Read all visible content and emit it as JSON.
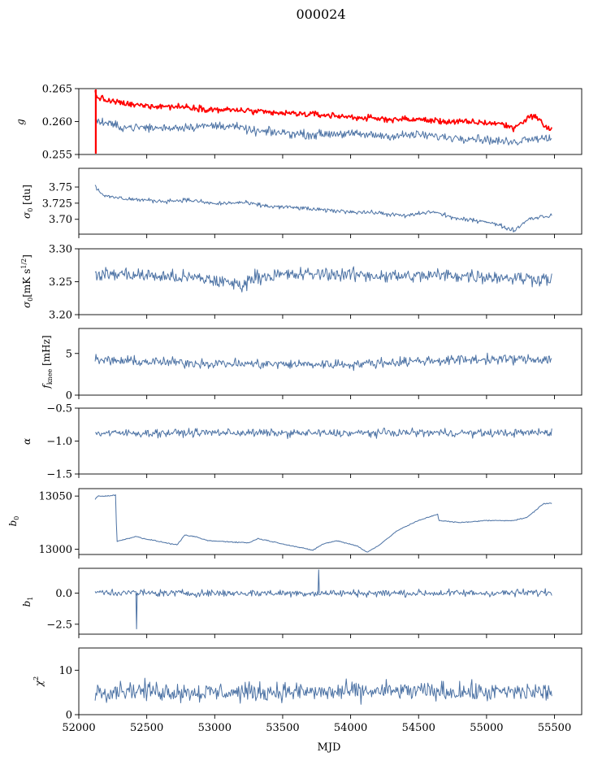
{
  "figure": {
    "title": "000024",
    "xlabel": "MJD",
    "colors": {
      "primary": "#4c72a4",
      "secondary": "#ff0000",
      "axes": "#000000"
    }
  },
  "chart_data": {
    "type": "line",
    "x_range": [
      52000,
      55700
    ],
    "x_ticks": [
      52000,
      52500,
      53000,
      53500,
      54000,
      54500,
      55000,
      55500
    ],
    "x_tick_labels": [
      "52000",
      "52500",
      "53000",
      "53500",
      "54000",
      "54500",
      "55000",
      "55500"
    ],
    "x_extent": [
      52120,
      55480
    ],
    "panels": [
      {
        "name": "g",
        "ylabel": "g",
        "ylim": [
          0.255,
          0.265
        ],
        "yticks": [
          0.255,
          0.26,
          0.265
        ],
        "ytick_labels": [
          "0.255",
          "0.260",
          "0.265"
        ],
        "series": [
          {
            "color": "#ff0000",
            "noise": 0.00035,
            "x": [
              52120,
              52130,
              52200,
              52400,
              52800,
              53000,
              53200,
              53400,
              53600,
              53800,
              54000,
              54200,
              54500,
              54700,
              54900,
              55100,
              55200,
              55300,
              55350,
              55420,
              55470
            ],
            "y": [
              0.2645,
              0.2638,
              0.2632,
              0.2625,
              0.2622,
              0.2618,
              0.2617,
              0.2613,
              0.2612,
              0.261,
              0.2607,
              0.2604,
              0.2603,
              0.26,
              0.2599,
              0.2597,
              0.259,
              0.2605,
              0.261,
              0.2595,
              0.2588
            ]
          },
          {
            "color": "#4c72a4",
            "noise": 0.0005,
            "x": [
              52120,
              52300,
              52600,
              52900,
              53100,
              53300,
              53500,
              53700,
              53900,
              54100,
              54300,
              54500,
              54700,
              54900,
              55100,
              55200,
              55300,
              55420
            ],
            "y": [
              0.2602,
              0.2592,
              0.259,
              0.2593,
              0.2594,
              0.2585,
              0.2583,
              0.258,
              0.2582,
              0.258,
              0.2578,
              0.258,
              0.2576,
              0.2575,
              0.257,
              0.2568,
              0.2575,
              0.2575
            ]
          }
        ]
      },
      {
        "name": "sigma0-du",
        "ylabel": "σ0 [du]",
        "ylim": [
          3.677,
          3.779
        ],
        "yticks": [
          3.7,
          3.725,
          3.75
        ],
        "ytick_labels": [
          "3.70",
          "3.725",
          "3.75"
        ],
        "series": [
          {
            "color": "#4c72a4",
            "noise": 0.0025,
            "x": [
              52120,
              52130,
              52200,
              52400,
              52600,
              52800,
              53000,
              53200,
              53400,
              53600,
              53800,
              54000,
              54200,
              54400,
              54600,
              54800,
              55000,
              55200,
              55250,
              55300,
              55420
            ],
            "y": [
              3.754,
              3.748,
              3.735,
              3.731,
              3.728,
              3.73,
              3.724,
              3.726,
              3.72,
              3.718,
              3.714,
              3.712,
              3.71,
              3.705,
              3.712,
              3.7,
              3.697,
              3.683,
              3.69,
              3.7,
              3.705
            ]
          }
        ]
      },
      {
        "name": "sigma0-mk",
        "ylabel": "σ0[mK s^1/2]",
        "ylim": [
          3.2,
          3.3
        ],
        "yticks": [
          3.2,
          3.25,
          3.3
        ],
        "ytick_labels": [
          "3.20",
          "3.25",
          "3.30"
        ],
        "series": [
          {
            "color": "#4c72a4",
            "noise": 0.008,
            "x": [
              52120,
              52300,
              52600,
              52900,
              53200,
              53300,
              53500,
              53800,
              54100,
              54400,
              54700,
              55000,
              55300,
              55420
            ],
            "y": [
              3.26,
              3.262,
              3.258,
              3.255,
              3.245,
              3.258,
              3.26,
              3.262,
              3.26,
              3.258,
              3.26,
              3.258,
              3.255,
              3.255
            ]
          }
        ]
      },
      {
        "name": "fknee",
        "ylabel": "fknee [mHz]",
        "ylim": [
          0,
          8
        ],
        "yticks": [
          0,
          5
        ],
        "ytick_labels": [
          "0",
          "5"
        ],
        "series": [
          {
            "color": "#4c72a4",
            "noise": 0.45,
            "x": [
              52120,
              52500,
              53000,
              53500,
              54000,
              54500,
              55000,
              55420
            ],
            "y": [
              4.2,
              4.0,
              3.8,
              3.7,
              3.7,
              4.1,
              4.3,
              4.3
            ]
          }
        ]
      },
      {
        "name": "alpha",
        "ylabel": "α",
        "ylim": [
          -1.5,
          -0.5
        ],
        "yticks": [
          -1.5,
          -1.0,
          -0.5
        ],
        "ytick_labels": [
          "−1.5",
          "−1.0",
          "−0.5"
        ],
        "series": [
          {
            "color": "#4c72a4",
            "noise": 0.045,
            "x": [
              52120,
              52500,
              53000,
              53500,
              54000,
              54500,
              55000,
              55420
            ],
            "y": [
              -0.88,
              -0.88,
              -0.87,
              -0.88,
              -0.88,
              -0.87,
              -0.88,
              -0.87
            ]
          }
        ]
      },
      {
        "name": "b0",
        "ylabel": "b0",
        "ylim": [
          12995,
          13057
        ],
        "yticks": [
          13000,
          13050
        ],
        "ytick_labels": [
          "13000",
          "13050"
        ],
        "series": [
          {
            "color": "#4c72a4",
            "noise": 0.35,
            "x": [
              52120,
              52140,
              52200,
              52270,
              52280,
              52300,
              52420,
              52480,
              52560,
              52720,
              52780,
              52850,
              52950,
              53100,
              53250,
              53320,
              53500,
              53720,
              53800,
              53900,
              54050,
              54120,
              54200,
              54350,
              54500,
              54640,
              54650,
              54800,
              55000,
              55200,
              55300,
              55420
            ],
            "y": [
              13047,
              13050,
              13050,
              13051,
              13007,
              13008,
              13012,
              13010,
              13008,
              13004,
              13013,
              13012,
              13008,
              13007,
              13006,
              13010,
              13005,
              12999,
              13005,
              13008,
              13003,
              12997,
              13003,
              13018,
              13027,
              13033,
              13027,
              13025,
              13027,
              13027,
              13030,
              13043
            ]
          }
        ]
      },
      {
        "name": "b1",
        "ylabel": "b1",
        "ylim": [
          -3.3,
          2.0
        ],
        "yticks": [
          -2.5,
          0.0
        ],
        "ytick_labels": [
          "−2.5",
          "0.0"
        ],
        "series": [
          {
            "color": "#4c72a4",
            "noise": 0.22,
            "x": [
              52120,
              52500,
              53000,
              53500,
              54000,
              54500,
              55000,
              55420
            ],
            "y": [
              0.1,
              0.0,
              0.0,
              0.0,
              0.0,
              0.0,
              0.0,
              0.05
            ]
          }
        ]
      },
      {
        "name": "chi2",
        "ylabel": "χ2",
        "ylim": [
          0,
          15
        ],
        "yticks": [
          0,
          10
        ],
        "ytick_labels": [
          "0",
          "10"
        ],
        "series": [
          {
            "color": "#4c72a4",
            "noise": 1.6,
            "x": [
              52120,
              52300,
              52600,
              52900,
              53200,
              53500,
              53800,
              54100,
              54400,
              54700,
              55000,
              55300,
              55420
            ],
            "y": [
              5.2,
              5.6,
              5.3,
              5.0,
              5.0,
              5.2,
              5.0,
              5.2,
              5.3,
              5.2,
              5.0,
              5.1,
              5.1
            ]
          }
        ]
      }
    ]
  }
}
